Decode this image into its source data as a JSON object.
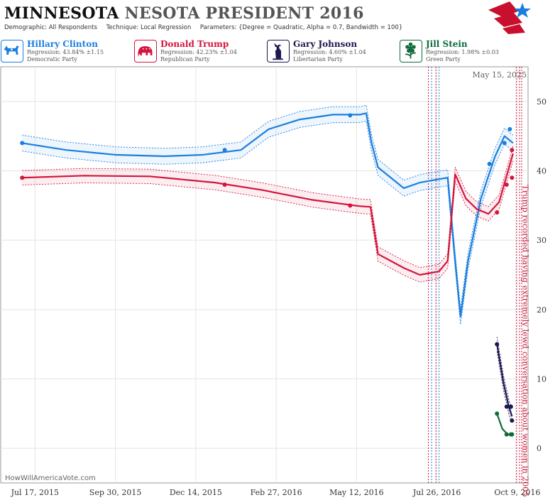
{
  "header": {
    "title_state": "MINNESOTA",
    "title_rest": "NESOTA PRESIDENT 2016",
    "demographic": "Demographic: All Respondents",
    "technique": "Technique: Local Regression",
    "parameters": "Parameters: {Degree = Quadratic, Alpha = 0.7, Bandwidth = 100}",
    "logo_icon": "star-flag-logo-icon"
  },
  "candidates": [
    {
      "name": "Hillary Clinton",
      "regression": "Regression: 43.84% ±1.15",
      "party": "Democratic Party",
      "color": "#1a7ee0",
      "icon": "donkey-icon"
    },
    {
      "name": "Donald Trump",
      "regression": "Regression: 42.23% ±1.04",
      "party": "Republican Party",
      "color": "#d4143c",
      "icon": "elephant-icon"
    },
    {
      "name": "Gary Johnson",
      "regression": "Regression: 4.60% ±1.04",
      "party": "Libertarian Party",
      "color": "#1c1850",
      "icon": "statue-of-liberty-icon"
    },
    {
      "name": "Jill Stein",
      "regression": "Regression: 1.98% ±0.03",
      "party": "Green Party",
      "color": "#0e6b3a",
      "icon": "flower-icon"
    }
  ],
  "date_stamp": "May 15, 2025",
  "watermark": "HowWillAmericaVote.com",
  "annotation": "Trump recorded having extremely lewd conversation about women in 2005",
  "chart_data": {
    "type": "line",
    "x_ticks": [
      "Jul 17, 2015",
      "Sep 30, 2015",
      "Dec 14, 2015",
      "Feb 27, 2016",
      "May 12, 2016",
      "Jul 26, 2016",
      "Oct 9, 2016"
    ],
    "y_ticks": [
      0,
      10,
      20,
      30,
      40,
      50
    ],
    "ylim": [
      -5,
      55
    ],
    "xlim": [
      "2015-06-15",
      "2016-10-19"
    ],
    "grid": true,
    "event_lines": [
      {
        "date": "2016-07-18",
        "color": "#d4143c"
      },
      {
        "date": "2016-07-21",
        "color": "#1a7ee0"
      },
      {
        "date": "2016-07-25",
        "color": "#d4143c"
      },
      {
        "date": "2016-07-28",
        "color": "#1a7ee0"
      },
      {
        "date": "2016-10-08",
        "color": "#d4143c"
      },
      {
        "date": "2016-10-11",
        "color": "#d4143c"
      },
      {
        "date": "2016-10-13",
        "color": "#d4143c"
      }
    ],
    "series": [
      {
        "name": "Hillary Clinton",
        "color": "#1a7ee0",
        "points": [
          [
            "2015-07-05",
            44
          ],
          [
            "2016-01-10",
            43
          ],
          [
            "2016-05-06",
            48
          ],
          [
            "2016-09-13",
            41
          ],
          [
            "2016-09-27",
            44
          ],
          [
            "2016-10-02",
            46
          ]
        ],
        "trend": [
          [
            "2015-07-05",
            44
          ],
          [
            "2015-08-15",
            43
          ],
          [
            "2015-10-01",
            42.3
          ],
          [
            "2015-11-15",
            42.1
          ],
          [
            "2015-12-20",
            42.3
          ],
          [
            "2016-01-25",
            43
          ],
          [
            "2016-02-20",
            46
          ],
          [
            "2016-03-20",
            47.4
          ],
          [
            "2016-04-20",
            48.1
          ],
          [
            "2016-05-15",
            48.1
          ],
          [
            "2016-05-21",
            48.3
          ],
          [
            "2016-05-26",
            44
          ],
          [
            "2016-06-01",
            40.5
          ],
          [
            "2016-06-25",
            37.5
          ],
          [
            "2016-07-10",
            38.3
          ],
          [
            "2016-07-28",
            38.8
          ],
          [
            "2016-08-05",
            39
          ],
          [
            "2016-08-12",
            27
          ],
          [
            "2016-08-17",
            19
          ],
          [
            "2016-08-24",
            27
          ],
          [
            "2016-09-05",
            36
          ],
          [
            "2016-09-18",
            42
          ],
          [
            "2016-09-27",
            45
          ],
          [
            "2016-10-05",
            44
          ]
        ],
        "band": 1.15
      },
      {
        "name": "Donald Trump",
        "color": "#d4143c",
        "points": [
          [
            "2015-07-05",
            39
          ],
          [
            "2016-01-10",
            38
          ],
          [
            "2016-05-06",
            35
          ],
          [
            "2016-09-20",
            34
          ],
          [
            "2016-09-29",
            38
          ],
          [
            "2016-10-04",
            43
          ],
          [
            "2016-10-04",
            39
          ]
        ],
        "trend": [
          [
            "2015-07-05",
            39
          ],
          [
            "2015-09-01",
            39.3
          ],
          [
            "2015-11-01",
            39.2
          ],
          [
            "2016-01-01",
            38.3
          ],
          [
            "2016-02-15",
            37.2
          ],
          [
            "2016-04-01",
            35.8
          ],
          [
            "2016-05-15",
            34.9
          ],
          [
            "2016-05-25",
            34.8
          ],
          [
            "2016-06-01",
            28
          ],
          [
            "2016-06-25",
            26
          ],
          [
            "2016-07-10",
            25
          ],
          [
            "2016-07-28",
            25.5
          ],
          [
            "2016-08-05",
            27
          ],
          [
            "2016-08-12",
            39.5
          ],
          [
            "2016-08-22",
            36
          ],
          [
            "2016-09-01",
            34.5
          ],
          [
            "2016-09-12",
            33.8
          ],
          [
            "2016-09-22",
            35.5
          ],
          [
            "2016-10-05",
            42.5
          ]
        ],
        "band": 1.04
      },
      {
        "name": "Gary Johnson",
        "color": "#1c1850",
        "points": [
          [
            "2016-09-20",
            15
          ],
          [
            "2016-09-29",
            6
          ],
          [
            "2016-10-03",
            6
          ],
          [
            "2016-10-04",
            4
          ]
        ],
        "trend": [
          [
            "2016-09-20",
            15
          ],
          [
            "2016-09-26",
            9.5
          ],
          [
            "2016-10-01",
            6
          ],
          [
            "2016-10-04",
            4.6
          ]
        ],
        "band": 1.04
      },
      {
        "name": "Jill Stein",
        "color": "#0e6b3a",
        "points": [
          [
            "2016-09-20",
            5
          ],
          [
            "2016-09-29",
            2
          ],
          [
            "2016-10-03",
            2
          ],
          [
            "2016-10-04",
            2
          ]
        ],
        "trend": [
          [
            "2016-09-20",
            5
          ],
          [
            "2016-09-25",
            2.8
          ],
          [
            "2016-09-30",
            2
          ],
          [
            "2016-10-04",
            2
          ]
        ],
        "band": 0.03
      }
    ]
  }
}
